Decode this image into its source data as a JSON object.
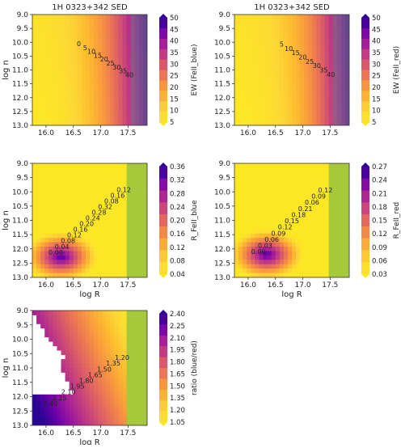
{
  "figure": {
    "title_left": "1H 0323+342 SED",
    "title_right": "1H 0323+342 SED"
  },
  "chart_data": [
    {
      "type": "heatmap",
      "title": "1H 0323+342 SED",
      "xlabel": "",
      "ylabel": "log n",
      "xlim": [
        15.75,
        17.85
      ],
      "ylim": [
        9.0,
        13.0
      ],
      "x_ticks": [
        "16.0",
        "16.5",
        "17.0",
        "17.5"
      ],
      "y_ticks": [
        "9.0",
        "9.5",
        "10.0",
        "10.5",
        "11.0",
        "11.5",
        "12.0",
        "12.5",
        "13.0"
      ],
      "colorbar_label": "EW (FeII_blue)",
      "colorbar_ticks": [
        "5",
        "10",
        "15",
        "20",
        "25",
        "30",
        "35",
        "40",
        "45",
        "50"
      ],
      "contour_labels": [
        "0",
        "5",
        "10",
        "15",
        "20",
        "25",
        "30",
        "35",
        "40"
      ]
    },
    {
      "type": "heatmap",
      "title": "1H 0323+342 SED",
      "xlabel": "",
      "ylabel": "",
      "xlim": [
        15.75,
        17.85
      ],
      "ylim": [
        9.0,
        13.0
      ],
      "x_ticks": [
        "16.0",
        "16.5",
        "17.0",
        "17.5"
      ],
      "y_ticks": [
        "9.0",
        "9.5",
        "10.0",
        "10.5",
        "11.0",
        "11.5",
        "12.0",
        "12.5",
        "13.0"
      ],
      "colorbar_label": "EW (FeII_red)",
      "colorbar_ticks": [
        "5",
        "10",
        "15",
        "20",
        "25",
        "30",
        "35",
        "40",
        "45",
        "50"
      ],
      "contour_labels": [
        "5",
        "10",
        "15",
        "20",
        "25",
        "30",
        "35",
        "40"
      ]
    },
    {
      "type": "heatmap",
      "title": "",
      "xlabel": "log R",
      "ylabel": "log n",
      "xlim": [
        15.75,
        17.85
      ],
      "ylim": [
        9.0,
        13.0
      ],
      "x_ticks": [
        "16.0",
        "16.5",
        "17.0",
        "17.5"
      ],
      "y_ticks": [
        "9.0",
        "9.5",
        "10.0",
        "10.5",
        "11.0",
        "11.5",
        "12.0",
        "12.5",
        "13.0"
      ],
      "colorbar_label": "R_FeII_blue",
      "colorbar_ticks": [
        "0.04",
        "0.08",
        "0.12",
        "0.16",
        "0.20",
        "0.24",
        "0.28",
        "0.32",
        "0.36"
      ],
      "contour_labels": [
        "0.00",
        "0.04",
        "0.08",
        "0.12",
        "0.16",
        "0.20",
        "0.24",
        "0.28",
        "0.32",
        "0.08",
        "0.16",
        "0.12"
      ]
    },
    {
      "type": "heatmap",
      "title": "",
      "xlabel": "log R",
      "ylabel": "",
      "xlim": [
        15.75,
        17.85
      ],
      "ylim": [
        9.0,
        13.0
      ],
      "x_ticks": [
        "16.0",
        "16.5",
        "17.0",
        "17.5"
      ],
      "y_ticks": [
        "9.0",
        "9.5",
        "10.0",
        "10.5",
        "11.0",
        "11.5",
        "12.0",
        "12.5",
        "13.0"
      ],
      "colorbar_label": "R_FeII_red",
      "colorbar_ticks": [
        "0.03",
        "0.06",
        "0.09",
        "0.12",
        "0.15",
        "0.18",
        "0.21",
        "0.24",
        "0.27"
      ],
      "contour_labels": [
        "0.00",
        "0.03",
        "0.06",
        "0.09",
        "0.12",
        "0.15",
        "0.18",
        "0.21",
        "0.06",
        "0.09",
        "0.12"
      ]
    },
    {
      "type": "heatmap",
      "title": "",
      "xlabel": "log R",
      "ylabel": "log n",
      "xlim": [
        15.75,
        17.85
      ],
      "ylim": [
        9.0,
        13.0
      ],
      "x_ticks": [
        "16.0",
        "16.5",
        "17.0",
        "17.5"
      ],
      "y_ticks": [
        "9.0",
        "9.5",
        "10.0",
        "10.5",
        "11.0",
        "11.5",
        "12.0",
        "12.5",
        "13.0"
      ],
      "colorbar_label": "ratio (blue/red)",
      "colorbar_ticks": [
        "1.05",
        "1.20",
        "1.35",
        "1.50",
        "1.65",
        "1.80",
        "1.95",
        "2.10",
        "2.25",
        "2.40"
      ],
      "contour_labels": [
        "2.40",
        "2.25",
        "2.10",
        "1.95",
        "1.80",
        "1.65",
        "1.50",
        "1.35",
        "1.20"
      ]
    }
  ],
  "palette": {
    "stops": [
      "#fde725",
      "#fdd835",
      "#fdbb2f",
      "#f99a3e",
      "#ec7853",
      "#d8576b",
      "#bd3786",
      "#9c179e",
      "#6a00a8",
      "#2a0593"
    ],
    "gray_overlay": "#7f7f7f",
    "green_overlay": "#a5c93a"
  }
}
